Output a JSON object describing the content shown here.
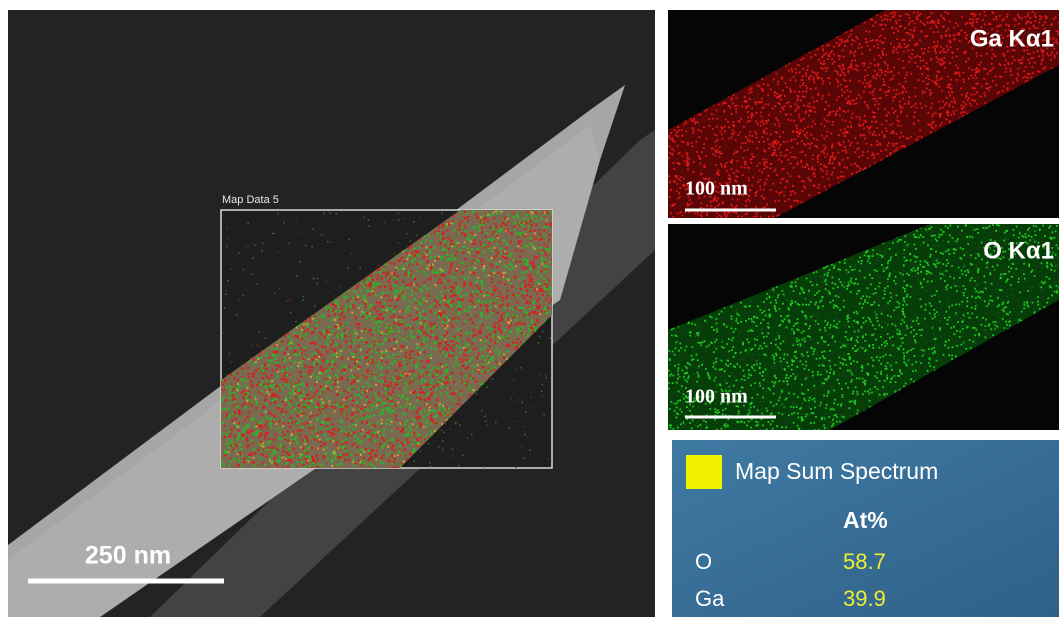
{
  "map_image": {
    "label": "Map Data 5",
    "scale_bar": "250 nm"
  },
  "ga_map": {
    "label": "Ga Kα1",
    "scale_bar": "100 nm"
  },
  "o_map": {
    "label": "O Kα1",
    "scale_bar": "100 nm"
  },
  "spectrum": {
    "title": "Map Sum Spectrum",
    "column_header": "At%",
    "rows": [
      [
        "O",
        58.7
      ],
      [
        "Ga",
        39.9
      ]
    ]
  }
}
